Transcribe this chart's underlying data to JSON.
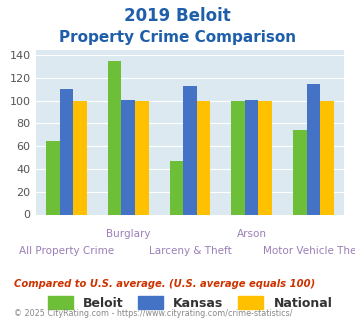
{
  "title_line1": "2019 Beloit",
  "title_line2": "Property Crime Comparison",
  "top_labels": [
    "",
    "Burglary",
    "",
    "Arson",
    ""
  ],
  "bottom_labels": [
    "All Property Crime",
    "",
    "Larceny & Theft",
    "",
    "Motor Vehicle Theft"
  ],
  "beloit": [
    65,
    135,
    47,
    100,
    74
  ],
  "kansas": [
    110,
    101,
    113,
    101,
    115
  ],
  "national": [
    100,
    100,
    100,
    100,
    100
  ],
  "beloit_color": "#6dbf38",
  "kansas_color": "#4472c4",
  "national_color": "#ffc000",
  "title_color": "#1f5faa",
  "axis_label_color": "#9b7fb6",
  "plot_bg_color": "#dce9f0",
  "legend_labels": [
    "Beloit",
    "Kansas",
    "National"
  ],
  "ylim": [
    0,
    145
  ],
  "yticks": [
    0,
    20,
    40,
    60,
    80,
    100,
    120,
    140
  ],
  "footnote1": "Compared to U.S. average. (U.S. average equals 100)",
  "footnote2": "© 2025 CityRating.com - https://www.cityrating.com/crime-statistics/",
  "footnote1_color": "#cc3300",
  "footnote2_color": "#888888",
  "bar_width": 0.22
}
